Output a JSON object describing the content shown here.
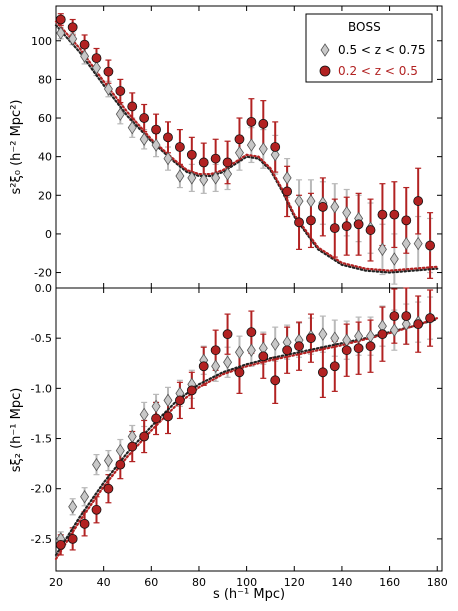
{
  "chart_data": [
    {
      "type": "scatter",
      "panel": "top",
      "ylabel": "s²ξ₀ (h⁻² Mpc²)",
      "ylim": [
        -28,
        118
      ],
      "xlim": [
        20,
        182
      ],
      "grid": false,
      "yticks": [
        -20,
        0,
        20,
        40,
        60,
        80,
        100
      ],
      "legend": {
        "title": "BOSS",
        "placement": "top-right",
        "entries": [
          "0.5 < z < 0.75",
          "0.2 < z < 0.5"
        ]
      },
      "series": [
        {
          "name": "0.5 < z < 0.75",
          "marker": "diamond",
          "color": "#c8c8c8",
          "error_color": "#b9b9b9",
          "x": [
            22,
            27,
            32,
            37,
            42,
            47,
            52,
            57,
            62,
            67,
            72,
            77,
            82,
            87,
            92,
            97,
            102,
            107,
            112,
            117,
            122,
            127,
            132,
            137,
            142,
            147,
            152,
            157,
            162,
            167,
            172,
            177
          ],
          "y": [
            104,
            101,
            92,
            86,
            75,
            62,
            55,
            49,
            46,
            39,
            30,
            29,
            28,
            29,
            31,
            42,
            46,
            44,
            41,
            29,
            17,
            17,
            16,
            14,
            11,
            8,
            3,
            -8,
            -13,
            -5,
            -5,
            -6
          ],
          "err": [
            3,
            3,
            4,
            4,
            4,
            5,
            5,
            5,
            6,
            6,
            6,
            7,
            7,
            7,
            8,
            9,
            9,
            10,
            10,
            10,
            11,
            11,
            11,
            12,
            12,
            12,
            13,
            13,
            13,
            14,
            14,
            14
          ]
        },
        {
          "name": "0.2 < z < 0.5",
          "marker": "circle",
          "color": "#b22222",
          "error_color": "#b22222",
          "x": [
            22,
            27,
            32,
            37,
            42,
            47,
            52,
            57,
            62,
            67,
            72,
            77,
            82,
            87,
            92,
            97,
            102,
            107,
            112,
            117,
            122,
            127,
            132,
            137,
            142,
            147,
            152,
            157,
            162,
            167,
            172,
            177
          ],
          "y": [
            111,
            107,
            98,
            91,
            84,
            74,
            66,
            60,
            54,
            50,
            45,
            41,
            37,
            39,
            37,
            49,
            58,
            57,
            45,
            22,
            6,
            7,
            14,
            3,
            4,
            5,
            2,
            10,
            10,
            7,
            17,
            -6
          ],
          "err": [
            3,
            4,
            5,
            5,
            6,
            6,
            7,
            7,
            8,
            8,
            9,
            9,
            10,
            10,
            11,
            11,
            12,
            12,
            13,
            13,
            14,
            14,
            15,
            15,
            15,
            16,
            16,
            16,
            17,
            17,
            17,
            17
          ]
        },
        {
          "name": "0.5 < z < 0.75 model",
          "style": "dotted",
          "color": "#222222",
          "x": [
            20,
            30,
            40,
            50,
            60,
            70,
            75,
            80,
            85,
            90,
            95,
            100,
            105,
            110,
            115,
            120,
            130,
            140,
            150,
            160,
            170,
            180
          ],
          "y": [
            108,
            94,
            77,
            61,
            48,
            37,
            32,
            30,
            30,
            32,
            36,
            40,
            39,
            33,
            22,
            9,
            -8,
            -16,
            -19,
            -20,
            -19,
            -18
          ]
        },
        {
          "name": "0.2 < z < 0.5 model",
          "style": "dotted",
          "color": "#b22222",
          "x": [
            20,
            30,
            40,
            50,
            60,
            70,
            75,
            80,
            85,
            90,
            95,
            100,
            105,
            110,
            115,
            120,
            130,
            140,
            150,
            160,
            170,
            180
          ],
          "y": [
            110,
            96,
            79,
            63,
            49,
            38,
            33,
            31,
            31,
            33,
            37,
            41,
            40,
            34,
            23,
            10,
            -7,
            -15,
            -18,
            -19,
            -18,
            -17
          ]
        }
      ]
    },
    {
      "type": "scatter",
      "panel": "bottom",
      "xlabel": "s (h⁻¹ Mpc)",
      "ylabel": "sξ₂ (h⁻¹ Mpc)",
      "xlim": [
        20,
        182
      ],
      "ylim": [
        -2.82,
        0.0
      ],
      "grid": false,
      "xticks": [
        20,
        40,
        60,
        80,
        100,
        120,
        140,
        160,
        180
      ],
      "yticks": [
        -2.5,
        -2.0,
        -1.5,
        -1.0,
        -0.5,
        0.0
      ],
      "series": [
        {
          "name": "0.5 < z < 0.75",
          "marker": "diamond",
          "color": "#c8c8c8",
          "error_color": "#b9b9b9",
          "x": [
            22,
            27,
            32,
            37,
            42,
            47,
            52,
            57,
            62,
            67,
            72,
            77,
            82,
            87,
            92,
            97,
            102,
            107,
            112,
            117,
            122,
            127,
            132,
            137,
            142,
            147,
            152,
            157,
            162,
            167,
            172,
            177
          ],
          "y": [
            -2.5,
            -2.18,
            -2.08,
            -1.76,
            -1.72,
            -1.62,
            -1.48,
            -1.26,
            -1.18,
            -1.12,
            -1.05,
            -0.96,
            -0.72,
            -0.78,
            -0.74,
            -0.64,
            -0.62,
            -0.6,
            -0.56,
            -0.54,
            -0.52,
            -0.48,
            -0.46,
            -0.5,
            -0.52,
            -0.48,
            -0.48,
            -0.38,
            -0.42,
            -0.36,
            -0.34,
            -0.3
          ],
          "err": [
            0.07,
            0.08,
            0.09,
            0.1,
            0.1,
            0.11,
            0.11,
            0.12,
            0.12,
            0.13,
            0.13,
            0.14,
            0.14,
            0.15,
            0.15,
            0.16,
            0.16,
            0.16,
            0.17,
            0.17,
            0.17,
            0.18,
            0.18,
            0.18,
            0.19,
            0.19,
            0.19,
            0.2,
            0.2,
            0.2,
            0.2,
            0.21
          ]
        },
        {
          "name": "0.2 < z < 0.5",
          "marker": "circle",
          "color": "#b22222",
          "error_color": "#b22222",
          "x": [
            22,
            27,
            32,
            37,
            42,
            47,
            52,
            57,
            62,
            67,
            72,
            77,
            82,
            87,
            92,
            97,
            102,
            107,
            112,
            117,
            122,
            127,
            132,
            137,
            142,
            147,
            152,
            157,
            162,
            167,
            172,
            177
          ],
          "y": [
            -2.56,
            -2.5,
            -2.35,
            -2.21,
            -2.0,
            -1.76,
            -1.58,
            -1.48,
            -1.3,
            -1.28,
            -1.12,
            -1.02,
            -0.78,
            -0.62,
            -0.46,
            -0.84,
            -0.44,
            -0.68,
            -0.92,
            -0.62,
            -0.58,
            -0.5,
            -0.84,
            -0.78,
            -0.62,
            -0.6,
            -0.58,
            -0.46,
            -0.28,
            -0.28,
            -0.36,
            -0.3
          ],
          "err": [
            0.1,
            0.11,
            0.12,
            0.13,
            0.14,
            0.14,
            0.15,
            0.16,
            0.16,
            0.17,
            0.18,
            0.18,
            0.19,
            0.2,
            0.2,
            0.21,
            0.21,
            0.22,
            0.23,
            0.23,
            0.24,
            0.24,
            0.25,
            0.25,
            0.26,
            0.26,
            0.26,
            0.27,
            0.27,
            0.28,
            0.28,
            0.28
          ]
        },
        {
          "name": "0.5 < z < 0.75 model",
          "style": "dotted",
          "color": "#222222",
          "x": [
            20,
            30,
            40,
            50,
            60,
            70,
            80,
            90,
            100,
            110,
            120,
            130,
            140,
            150,
            160,
            170,
            180
          ],
          "y": [
            -2.66,
            -2.28,
            -1.94,
            -1.64,
            -1.38,
            -1.14,
            -0.96,
            -0.84,
            -0.76,
            -0.7,
            -0.65,
            -0.6,
            -0.55,
            -0.5,
            -0.44,
            -0.38,
            -0.31
          ]
        },
        {
          "name": "0.2 < z < 0.5 model",
          "style": "dotted",
          "color": "#b22222",
          "x": [
            20,
            30,
            40,
            50,
            60,
            70,
            80,
            90,
            100,
            110,
            120,
            130,
            140,
            150,
            160,
            170,
            180
          ],
          "y": [
            -2.7,
            -2.32,
            -1.98,
            -1.68,
            -1.42,
            -1.18,
            -0.99,
            -0.86,
            -0.78,
            -0.72,
            -0.67,
            -0.62,
            -0.57,
            -0.51,
            -0.45,
            -0.38,
            -0.3
          ]
        }
      ]
    }
  ]
}
